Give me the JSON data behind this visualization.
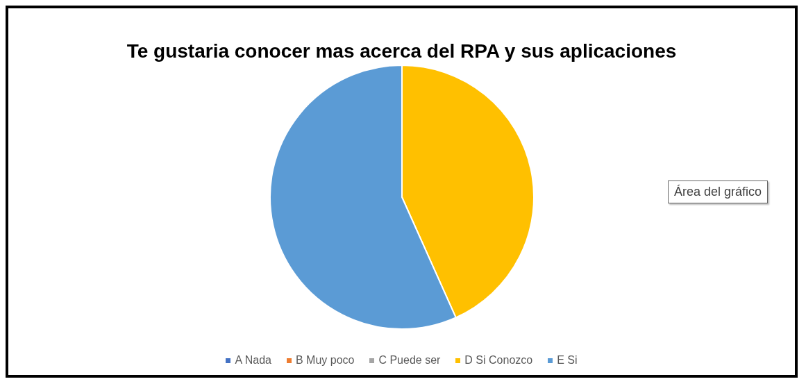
{
  "chart_data": {
    "type": "pie",
    "title": "Te gustaria conocer mas acerca del RPA y sus aplicaciones",
    "categories": [
      "A Nada",
      "B Muy poco",
      "C Puede ser",
      "D Si Conozco",
      "E Si"
    ],
    "values": [
      0,
      0,
      0,
      43.3,
      56.7
    ],
    "colors": [
      "#4472c4",
      "#ed7d31",
      "#a5a5a5",
      "#ffc000",
      "#5b9bd5"
    ],
    "legend": "bottom",
    "annotations": [
      "Área del gráfico"
    ]
  }
}
